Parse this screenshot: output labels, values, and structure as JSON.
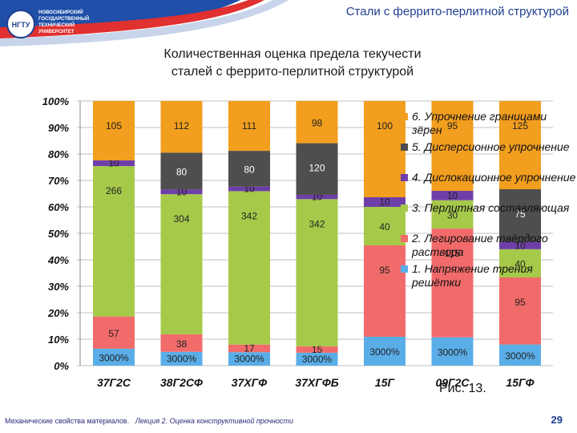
{
  "header": {
    "top_title": "Стали с феррито-перлитной структурой",
    "logo_text": [
      "НОВОСИБИРСКИЙ",
      "ГОСУДАРСТВЕННЫЙ",
      "ТЕХНИЧЕСКИЙ",
      "УНИВЕРСИТЕТ",
      "НГТУ"
    ],
    "chart_title_line1": "Количественная оценка предела текучести",
    "chart_title_line2": "сталей с феррито-перлитной структурой"
  },
  "footer": {
    "left": "Механические свойства материалов.",
    "lecture": "Лекция 2. Оценка конструктивной прочности",
    "page": "29",
    "caption": "Рис. 13."
  },
  "colors": {
    "c1": "#5aaee8",
    "c2": "#f26b6b",
    "c3": "#a6c94a",
    "c4": "#6e3fa8",
    "c5": "#4e4e4e",
    "c6": "#f29e1e",
    "grid": "#bfbfbf"
  },
  "chart_data": {
    "type": "bar",
    "stacked": "percent",
    "categories": [
      "37Г2С",
      "38Г2СФ",
      "37ХГФ",
      "37ХГФБ",
      "15Г",
      "09Г2С",
      "15ГФ"
    ],
    "y_ticks": [
      "0%",
      "10%",
      "20%",
      "30%",
      "40%",
      "50%",
      "60%",
      "70%",
      "80%",
      "90%",
      "100%"
    ],
    "ylim": [
      0,
      100
    ],
    "legend_position": "right",
    "series": [
      {
        "name": "1. Напряжение трения решётки",
        "color_key": "c1",
        "values": [
          30,
          30,
          30,
          30,
          30,
          30,
          30
        ],
        "labels": [
          "3000%",
          "3000%",
          "3000%",
          "3000%",
          "3000%",
          "3000%",
          "3000%"
        ]
      },
      {
        "name": "2. Легирование твёрдого раствора",
        "color_key": "c2",
        "values": [
          57,
          38,
          17,
          15,
          95,
          115,
          95
        ],
        "labels": [
          "57",
          "38",
          "17",
          "15",
          "95",
          "115",
          "95"
        ]
      },
      {
        "name": "3. Перлитная составляющая",
        "color_key": "c3",
        "values": [
          266,
          304,
          342,
          342,
          40,
          30,
          40
        ],
        "labels": [
          "266",
          "304",
          "342",
          "342",
          "40",
          "30",
          "40"
        ]
      },
      {
        "name": "4. Дислокационное упрочнение",
        "color_key": "c4",
        "values": [
          10,
          10,
          10,
          10,
          10,
          10,
          10
        ],
        "labels": [
          "10",
          "10",
          "10",
          "10",
          "10",
          "10",
          "10"
        ]
      },
      {
        "name": "5. Дисперсионное упрочнение",
        "color_key": "c5",
        "values": [
          0,
          80,
          80,
          120,
          0,
          0,
          75
        ],
        "labels": [
          "",
          "80",
          "80",
          "120",
          "",
          "",
          "75"
        ]
      },
      {
        "name": "6. Упрочнение границами зёрен",
        "color_key": "c6",
        "values": [
          105,
          112,
          111,
          98,
          100,
          95,
          125
        ],
        "labels": [
          "105",
          "112",
          "111",
          "98",
          "100",
          "95",
          "125"
        ]
      }
    ]
  }
}
